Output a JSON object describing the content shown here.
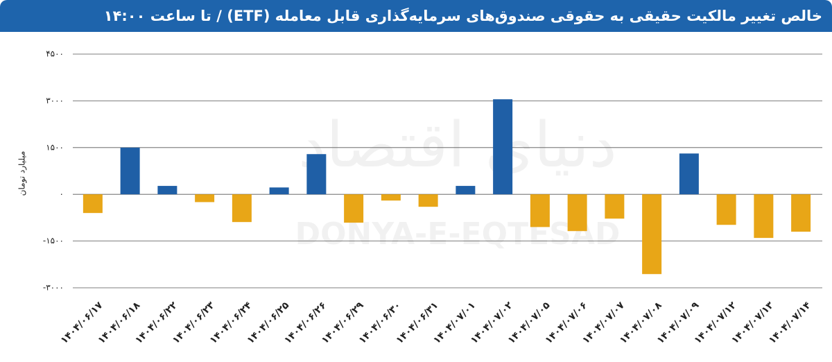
{
  "chart_data": {
    "type": "bar",
    "title": "خالص تغییر مالکیت حقیقی به حقوقی صندوق‌های سرمایه‌گذاری قابل معامله (ETF)  / تا ساعت ۱۴:۰۰",
    "y_label": "میلیارد تومان",
    "watermark": "DONYA-E-EQTESAD",
    "watermark_fa": "دنیای اقتصاد",
    "categories": [
      "۱۴۰۴/۰۶/۱۷",
      "۱۴۰۴/۰۶/۱۸",
      "۱۴۰۴/۰۶/۲۲",
      "۱۴۰۴/۰۶/۲۳",
      "۱۴۰۴/۰۶/۲۴",
      "۱۴۰۴/۰۶/۲۵",
      "۱۴۰۴/۰۶/۲۶",
      "۱۴۰۴/۰۶/۲۹",
      "۱۴۰۴/۰۶/۳۰",
      "۱۴۰۴/۰۶/۳۱",
      "۱۴۰۴/۰۷/۰۱",
      "۱۴۰۴/۰۷/۰۲",
      "۱۴۰۴/۰۷/۰۵",
      "۱۴۰۴/۰۷/۰۶",
      "۱۴۰۴/۰۷/۰۷",
      "۱۴۰۴/۰۷/۰۸",
      "۱۴۰۴/۰۷/۰۹",
      "۱۴۰۴/۰۷/۱۲",
      "۱۴۰۴/۰۷/۱۳",
      "۱۴۰۴/۰۷/۱۴"
    ],
    "values": [
      -600,
      1500,
      270,
      -250,
      -890,
      220,
      1290,
      -910,
      -200,
      -400,
      270,
      3050,
      -1050,
      -1180,
      -780,
      -2560,
      1310,
      -980,
      -1400,
      -1200
    ],
    "positive_color": "#1f5fa6",
    "negative_color": "#e8a617",
    "ylim": [
      -3000,
      4500
    ],
    "yticks": [
      {
        "value": 4500,
        "label": "۴۵۰۰"
      },
      {
        "value": 3000,
        "label": "۳۰۰۰"
      },
      {
        "value": 1500,
        "label": "۱۵۰۰"
      },
      {
        "value": 0,
        "label": "۰"
      },
      {
        "value": -1500,
        "label": "-۱۵۰۰"
      },
      {
        "value": -3000,
        "label": "-۳۰۰۰"
      }
    ],
    "grid": true
  }
}
